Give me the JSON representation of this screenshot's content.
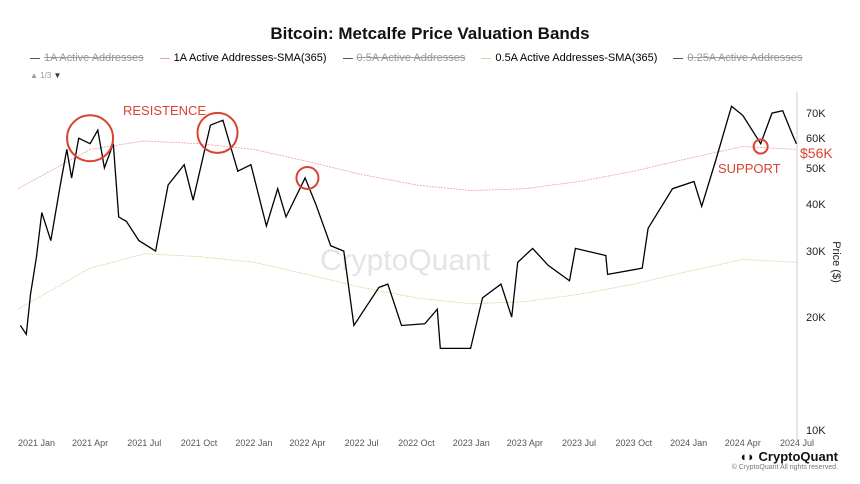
{
  "chart_data": {
    "type": "line",
    "title": "Bitcoin: Metcalfe Price Valuation Bands",
    "ylabel": "Price ($)",
    "yscale": "log",
    "ylim": [
      10000,
      75000
    ],
    "xlim": [
      "2020-12-01",
      "2024-07-01"
    ],
    "grid": false,
    "legend_position": "top",
    "xticks": [
      "2021 Jan",
      "2021 Apr",
      "2021 Jul",
      "2021 Oct",
      "2022 Jan",
      "2022 Apr",
      "2022 Jul",
      "2022 Oct",
      "2023 Jan",
      "2023 Apr",
      "2023 Jul",
      "2023 Oct",
      "2024 Jan",
      "2024 Apr",
      "2024 Jul"
    ],
    "yticks": [
      {
        "v": 70000,
        "label": "70K"
      },
      {
        "v": 60000,
        "label": "60K"
      },
      {
        "v": 50000,
        "label": "50K"
      },
      {
        "v": 40000,
        "label": "40K"
      },
      {
        "v": 30000,
        "label": "30K"
      },
      {
        "v": 20000,
        "label": "20K"
      },
      {
        "v": 10000,
        "label": "10K"
      }
    ],
    "legend": [
      {
        "label": "1A Active Addresses",
        "color": "#555555",
        "hidden": true
      },
      {
        "label": "1A Active Addresses-SMA(365)",
        "color": "#e8a0a0",
        "hidden": false
      },
      {
        "label": "0.5A Active Addresses",
        "color": "#555555",
        "hidden": true
      },
      {
        "label": "0.5A Active Addresses-SMA(365)",
        "color": "#e0cf9a",
        "hidden": false
      },
      {
        "label": "0.25A Active Addresses",
        "color": "#555555",
        "hidden": true
      }
    ],
    "legend_page": "1/3",
    "series": [
      {
        "role": "price",
        "color": "#000000",
        "points": [
          [
            "2020-12-05",
            19000
          ],
          [
            "2020-12-15",
            18000
          ],
          [
            "2020-12-22",
            23000
          ],
          [
            "2021-01-01",
            29000
          ],
          [
            "2021-01-10",
            38000
          ],
          [
            "2021-01-25",
            32000
          ],
          [
            "2021-02-10",
            45000
          ],
          [
            "2021-02-21",
            56000
          ],
          [
            "2021-03-01",
            47000
          ],
          [
            "2021-03-13",
            60000
          ],
          [
            "2021-04-01",
            58000
          ],
          [
            "2021-04-14",
            63000
          ],
          [
            "2021-04-25",
            50000
          ],
          [
            "2021-05-10",
            58000
          ],
          [
            "2021-05-19",
            37000
          ],
          [
            "2021-06-01",
            36000
          ],
          [
            "2021-06-22",
            32000
          ],
          [
            "2021-07-20",
            30000
          ],
          [
            "2021-08-10",
            45000
          ],
          [
            "2021-09-06",
            51000
          ],
          [
            "2021-09-21",
            41000
          ],
          [
            "2021-10-20",
            65000
          ],
          [
            "2021-11-10",
            67000
          ],
          [
            "2021-12-05",
            49000
          ],
          [
            "2021-12-27",
            51000
          ],
          [
            "2022-01-22",
            35000
          ],
          [
            "2022-02-10",
            44000
          ],
          [
            "2022-02-24",
            37000
          ],
          [
            "2022-03-28",
            47000
          ],
          [
            "2022-04-15",
            40000
          ],
          [
            "2022-05-10",
            31000
          ],
          [
            "2022-06-01",
            30000
          ],
          [
            "2022-06-18",
            19000
          ],
          [
            "2022-07-30",
            24000
          ],
          [
            "2022-08-14",
            24500
          ],
          [
            "2022-09-06",
            19000
          ],
          [
            "2022-10-15",
            19200
          ],
          [
            "2022-11-05",
            21000
          ],
          [
            "2022-11-10",
            16500
          ],
          [
            "2022-12-31",
            16500
          ],
          [
            "2023-01-20",
            22500
          ],
          [
            "2023-02-20",
            24500
          ],
          [
            "2023-03-10",
            20000
          ],
          [
            "2023-03-20",
            28000
          ],
          [
            "2023-04-14",
            30500
          ],
          [
            "2023-05-10",
            27500
          ],
          [
            "2023-06-15",
            25000
          ],
          [
            "2023-06-25",
            30500
          ],
          [
            "2023-08-15",
            29200
          ],
          [
            "2023-08-18",
            26000
          ],
          [
            "2023-10-15",
            27000
          ],
          [
            "2023-10-25",
            34500
          ],
          [
            "2023-12-05",
            44000
          ],
          [
            "2024-01-10",
            46000
          ],
          [
            "2024-01-23",
            39500
          ],
          [
            "2024-02-15",
            52000
          ],
          [
            "2024-03-13",
            73000
          ],
          [
            "2024-04-01",
            69000
          ],
          [
            "2024-05-01",
            58000
          ],
          [
            "2024-05-20",
            70000
          ],
          [
            "2024-06-07",
            71000
          ],
          [
            "2024-06-24",
            61000
          ],
          [
            "2024-06-30",
            58000
          ]
        ]
      },
      {
        "name": "1A Active Addresses-SMA(365)",
        "color": "#e8a0a0",
        "points": [
          [
            "2020-12-01",
            44000
          ],
          [
            "2021-04-01",
            56000
          ],
          [
            "2021-07-01",
            59000
          ],
          [
            "2021-10-01",
            58000
          ],
          [
            "2022-01-01",
            56000
          ],
          [
            "2022-04-01",
            52000
          ],
          [
            "2022-07-01",
            48000
          ],
          [
            "2022-10-01",
            45000
          ],
          [
            "2023-01-01",
            43500
          ],
          [
            "2023-04-01",
            44000
          ],
          [
            "2023-07-01",
            46000
          ],
          [
            "2023-10-01",
            49000
          ],
          [
            "2024-01-01",
            53000
          ],
          [
            "2024-04-01",
            57000
          ],
          [
            "2024-07-01",
            56000
          ]
        ]
      },
      {
        "name": "0.5A Active Addresses-SMA(365)",
        "color": "#e0cf9a",
        "points": [
          [
            "2020-12-01",
            21000
          ],
          [
            "2021-04-01",
            27000
          ],
          [
            "2021-07-01",
            29500
          ],
          [
            "2021-10-01",
            29000
          ],
          [
            "2022-01-01",
            28000
          ],
          [
            "2022-04-01",
            26000
          ],
          [
            "2022-07-01",
            24000
          ],
          [
            "2022-10-01",
            22500
          ],
          [
            "2023-01-01",
            21700
          ],
          [
            "2023-04-01",
            22000
          ],
          [
            "2023-07-01",
            23000
          ],
          [
            "2023-10-01",
            24500
          ],
          [
            "2024-01-01",
            26500
          ],
          [
            "2024-04-01",
            28500
          ],
          [
            "2024-07-01",
            28000
          ]
        ]
      }
    ],
    "annotations": [
      {
        "text": "RESISTENCE",
        "color": "#d9432f"
      },
      {
        "text": "SUPPORT",
        "color": "#d9432f"
      },
      {
        "text": "$56K",
        "color": "#d9432f"
      }
    ],
    "circles": [
      {
        "date": "2021-04-01",
        "value": 60000
      },
      {
        "date": "2021-11-01",
        "value": 62000
      },
      {
        "date": "2022-04-01",
        "value": 47000
      },
      {
        "date": "2024-05-01",
        "value": 57000
      }
    ]
  },
  "watermark": "CryptoQuant",
  "footer": {
    "brand": "CryptoQuant",
    "copyright": "© CryptoQuant All rights reserved."
  }
}
